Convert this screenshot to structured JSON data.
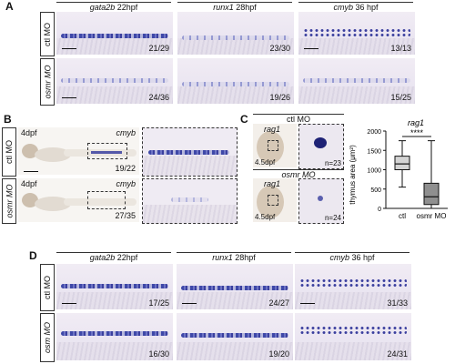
{
  "panels": {
    "A": {
      "label": "A",
      "heads": [
        {
          "gene": "gata2b",
          "stage": "22hpf"
        },
        {
          "gene": "runx1",
          "stage": "28hpf"
        },
        {
          "gene": "cmyb",
          "stage": "36 hpf"
        }
      ],
      "rows": [
        "ctl MO",
        "osmr MO"
      ],
      "counts": [
        [
          "21/29",
          "23/30",
          "13/13"
        ],
        [
          "24/36",
          "19/26",
          "15/25"
        ]
      ]
    },
    "B": {
      "label": "B",
      "rows": [
        "ctl MO",
        "osmr MO"
      ],
      "stage": "4dpf",
      "gene": "cmyb",
      "counts": [
        "19/22",
        "27/35"
      ]
    },
    "C": {
      "label": "C",
      "rows": [
        "ctl MO",
        "osmr MO"
      ],
      "gene": "rag1",
      "stage": "4.5dpf",
      "counts": [
        "n=23",
        "n=24"
      ],
      "plot_title": "rag1",
      "ylabel": "thymus area (μm²)",
      "sig": "****"
    },
    "D": {
      "label": "D",
      "heads": [
        {
          "gene": "gata2b",
          "stage": "22hpf"
        },
        {
          "gene": "runx1",
          "stage": "28hpf"
        },
        {
          "gene": "cmyb",
          "stage": "36 hpf"
        }
      ],
      "rows": [
        "ctl MO",
        "osm MO"
      ],
      "counts": [
        [
          "17/25",
          "24/27",
          "31/33"
        ],
        [
          "16/30",
          "19/20",
          "24/31"
        ]
      ]
    }
  },
  "chart_data": {
    "type": "box",
    "title": "rag1",
    "xlabel": "",
    "ylabel": "thymus area (μm²)",
    "categories": [
      "ctl",
      "osmr MO"
    ],
    "ylim": [
      0,
      2000
    ],
    "yticks": [
      0,
      500,
      1000,
      1500,
      2000
    ],
    "boxes": [
      {
        "category": "ctl",
        "min": 550,
        "q1": 1000,
        "median": 1150,
        "q3": 1350,
        "max": 1750,
        "fill": "#d4d4d4"
      },
      {
        "category": "osmr MO",
        "min": 0,
        "q1": 100,
        "median": 300,
        "q3": 650,
        "max": 1750,
        "fill": "#8f8f8f"
      }
    ],
    "annotation": "****"
  }
}
